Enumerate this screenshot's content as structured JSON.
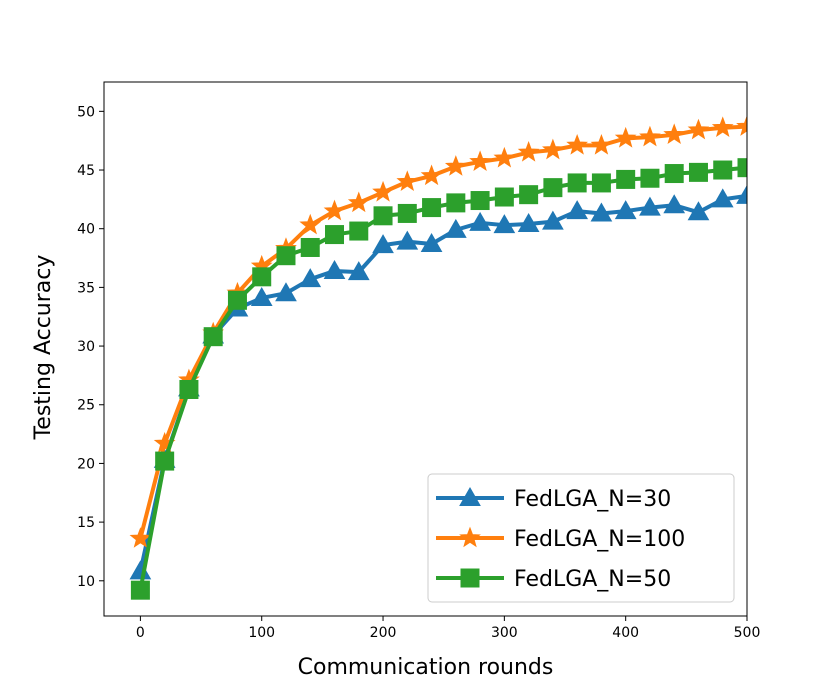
{
  "chart_data": {
    "type": "line",
    "title": "",
    "xlabel": "Communication rounds",
    "ylabel": "Testing Accuracy",
    "xlim": [
      -30,
      500
    ],
    "ylim": [
      7.0,
      52.5
    ],
    "xticks": [
      0,
      100,
      200,
      300,
      400,
      500
    ],
    "yticks": [
      10,
      15,
      20,
      25,
      30,
      35,
      40,
      45,
      50
    ],
    "grid": false,
    "legend_position": "lower-right",
    "x": [
      0,
      20,
      40,
      60,
      80,
      100,
      120,
      140,
      160,
      180,
      200,
      220,
      240,
      260,
      280,
      300,
      320,
      340,
      360,
      380,
      400,
      420,
      440,
      460,
      480,
      500
    ],
    "series": [
      {
        "name": "FedLGA_N=30",
        "color": "#1f77b4",
        "marker": "triangle",
        "values": [
          10.8,
          20.3,
          26.4,
          30.9,
          33.2,
          34.1,
          34.5,
          35.7,
          36.4,
          36.3,
          38.6,
          38.9,
          38.7,
          39.9,
          40.5,
          40.3,
          40.4,
          40.6,
          41.5,
          41.3,
          41.5,
          41.8,
          42.0,
          41.4,
          42.5,
          42.8
        ]
      },
      {
        "name": "FedLGA_N=100",
        "color": "#ff7f0e",
        "marker": "star",
        "values": [
          13.6,
          21.7,
          27.1,
          31.1,
          34.5,
          36.8,
          38.3,
          40.3,
          41.5,
          42.2,
          43.1,
          44.0,
          44.5,
          45.3,
          45.7,
          46.0,
          46.5,
          46.7,
          47.1,
          47.1,
          47.7,
          47.8,
          48.0,
          48.4,
          48.6,
          48.7
        ]
      },
      {
        "name": "FedLGA_N=50",
        "color": "#2ca02c",
        "marker": "square",
        "values": [
          9.2,
          20.2,
          26.3,
          30.8,
          33.9,
          35.9,
          37.7,
          38.4,
          39.5,
          39.8,
          41.1,
          41.3,
          41.8,
          42.2,
          42.4,
          42.7,
          42.9,
          43.5,
          43.9,
          43.9,
          44.2,
          44.3,
          44.7,
          44.8,
          45.0,
          45.2
        ]
      }
    ]
  }
}
